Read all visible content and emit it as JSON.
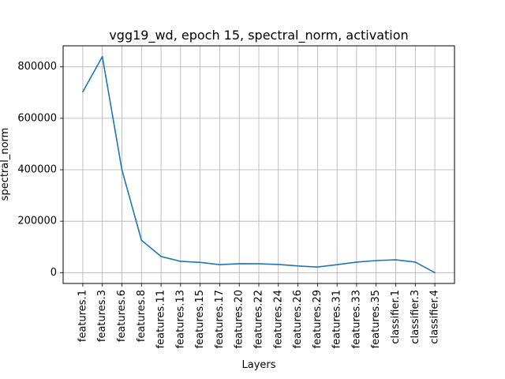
{
  "chart_data": {
    "type": "line",
    "title": "vgg19_wd, epoch 15, spectral_norm, activation",
    "xlabel": "Layers",
    "ylabel": "spectral_norm",
    "categories": [
      "features.1",
      "features.3",
      "features.6",
      "features.8",
      "features.11",
      "features.13",
      "features.15",
      "features.17",
      "features.20",
      "features.22",
      "features.24",
      "features.26",
      "features.29",
      "features.31",
      "features.33",
      "features.35",
      "classifier.1",
      "classifier.3",
      "classifier.4"
    ],
    "series": [
      {
        "values": [
          703000,
          840000,
          400000,
          126000,
          63000,
          44000,
          40000,
          31000,
          35000,
          34500,
          32000,
          26000,
          22000,
          31000,
          41000,
          47000,
          50000,
          41000,
          0
        ],
        "color": "#1f77b4"
      }
    ],
    "yticks": [
      0,
      200000,
      400000,
      600000,
      800000
    ],
    "ytick_labels": [
      "0",
      "200000",
      "400000",
      "600000",
      "800000"
    ],
    "grid": true
  }
}
